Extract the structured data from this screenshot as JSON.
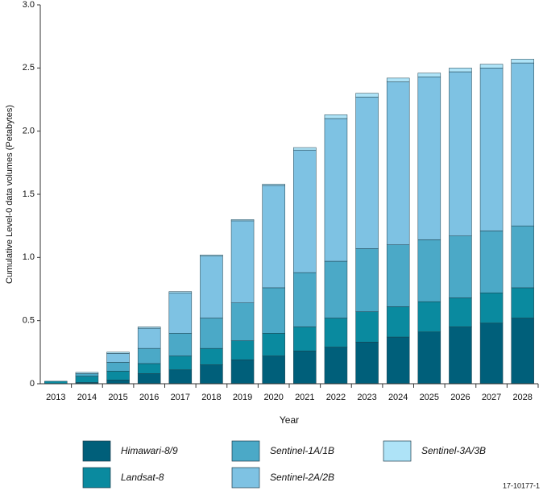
{
  "chart_data": {
    "type": "stacked-bar",
    "y_label": "Cumulative Level-0 data volumes (Petabytes)",
    "x_label": "Year",
    "note": "17-10177-1",
    "categories": [
      "2013",
      "2014",
      "2015",
      "2016",
      "2017",
      "2018",
      "2019",
      "2020",
      "2021",
      "2022",
      "2023",
      "2024",
      "2025",
      "2026",
      "2027",
      "2028"
    ],
    "series": [
      {
        "name": "Himawari-8/9",
        "color": "#005f7a",
        "values": [
          0,
          0.01,
          0.03,
          0.08,
          0.11,
          0.15,
          0.19,
          0.22,
          0.26,
          0.29,
          0.33,
          0.37,
          0.41,
          0.45,
          0.48,
          0.52
        ]
      },
      {
        "name": "Landsat-8",
        "color": "#0a8a9f",
        "values": [
          0.02,
          0.05,
          0.07,
          0.08,
          0.11,
          0.13,
          0.15,
          0.18,
          0.19,
          0.23,
          0.24,
          0.24,
          0.24,
          0.23,
          0.24,
          0.24
        ]
      },
      {
        "name": "Sentinel-1A/1B",
        "color": "#4ba9c7",
        "values": [
          0,
          0.02,
          0.07,
          0.12,
          0.18,
          0.24,
          0.3,
          0.36,
          0.43,
          0.45,
          0.5,
          0.49,
          0.49,
          0.49,
          0.49,
          0.49
        ]
      },
      {
        "name": "Sentinel-2A/2B",
        "color": "#7ec2e3",
        "values": [
          0,
          0,
          0.07,
          0.16,
          0.32,
          0.49,
          0.65,
          0.81,
          0.97,
          1.13,
          1.2,
          1.29,
          1.29,
          1.3,
          1.29,
          1.29
        ]
      },
      {
        "name": "Sentinel-3A/3B",
        "color": "#aee3f7",
        "values": [
          0,
          0.01,
          0.01,
          0.01,
          0.01,
          0.01,
          0.01,
          0.01,
          0.02,
          0.03,
          0.03,
          0.03,
          0.03,
          0.03,
          0.03,
          0.03
        ]
      }
    ],
    "ylim": [
      0,
      3
    ],
    "yticks": [
      0,
      0.5,
      {
        "value": 1,
        "label": "1.0"
      },
      1.5,
      {
        "value": 2,
        "label": "2.0"
      },
      2.5,
      {
        "value": 3,
        "label": "3.0"
      }
    ]
  }
}
